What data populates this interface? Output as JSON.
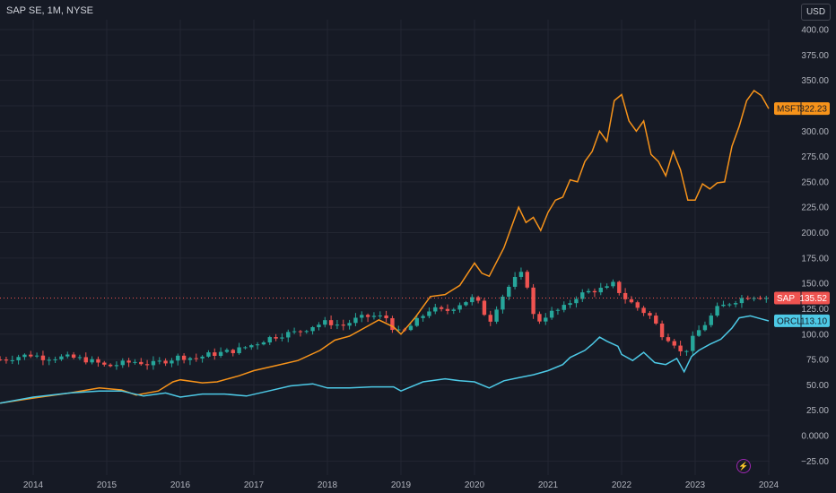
{
  "header": {
    "title": "SAP SE, 1M, NYSE",
    "currency": "USD"
  },
  "colors": {
    "background": "#161a25",
    "up": "#26a69a",
    "down": "#ef5350",
    "msft": "#f7931a",
    "orcl": "#4dc9e6",
    "grid": "#232632"
  },
  "icons": {
    "bolt": "lightning-icon"
  },
  "chart_data": {
    "type": "line",
    "title": "SAP SE, 1M, NYSE",
    "ylim": [
      -30,
      410
    ],
    "xlim": [
      2013.55,
      2024.6
    ],
    "y_ticks": [
      "400.00",
      "375.00",
      "350.00",
      "325.00",
      "300.00",
      "275.00",
      "250.00",
      "225.00",
      "200.00",
      "175.00",
      "150.00",
      "125.00",
      "100.00",
      "75.00",
      "50.00",
      "25.00",
      "0.0000",
      "−25.00"
    ],
    "y_tick_values": [
      400,
      375,
      350,
      325,
      300,
      275,
      250,
      225,
      200,
      175,
      150,
      125,
      100,
      75,
      50,
      25,
      0,
      -25
    ],
    "x_ticks": [
      "2014",
      "2015",
      "2016",
      "2017",
      "2018",
      "2019",
      "2020",
      "2021",
      "2022",
      "2023",
      "2024"
    ],
    "x_tick_values": [
      2014,
      2015,
      2016,
      2017,
      2018,
      2019,
      2020,
      2021,
      2022,
      2023,
      2024
    ],
    "grid": true,
    "series": [
      {
        "name": "MSFT",
        "last": "322.23",
        "color": "#f7931a",
        "points": [
          [
            2013.55,
            32
          ],
          [
            2014.0,
            37
          ],
          [
            2014.5,
            42
          ],
          [
            2014.9,
            47
          ],
          [
            2015.2,
            45
          ],
          [
            2015.4,
            40
          ],
          [
            2015.7,
            44
          ],
          [
            2015.9,
            53
          ],
          [
            2016.0,
            55
          ],
          [
            2016.3,
            52
          ],
          [
            2016.5,
            53
          ],
          [
            2016.8,
            59
          ],
          [
            2017.0,
            64
          ],
          [
            2017.3,
            69
          ],
          [
            2017.6,
            74
          ],
          [
            2017.9,
            84
          ],
          [
            2018.1,
            94
          ],
          [
            2018.3,
            98
          ],
          [
            2018.5,
            106
          ],
          [
            2018.7,
            114
          ],
          [
            2018.9,
            107
          ],
          [
            2019.0,
            100
          ],
          [
            2019.2,
            117
          ],
          [
            2019.4,
            137
          ],
          [
            2019.6,
            139
          ],
          [
            2019.8,
            148
          ],
          [
            2020.0,
            170
          ],
          [
            2020.1,
            160
          ],
          [
            2020.2,
            157
          ],
          [
            2020.4,
            185
          ],
          [
            2020.5,
            205
          ],
          [
            2020.6,
            225
          ],
          [
            2020.7,
            210
          ],
          [
            2020.8,
            215
          ],
          [
            2020.9,
            202
          ],
          [
            2021.0,
            220
          ],
          [
            2021.1,
            232
          ],
          [
            2021.2,
            235
          ],
          [
            2021.3,
            252
          ],
          [
            2021.4,
            250
          ],
          [
            2021.5,
            270
          ],
          [
            2021.6,
            280
          ],
          [
            2021.7,
            300
          ],
          [
            2021.8,
            290
          ],
          [
            2021.9,
            330
          ],
          [
            2022.0,
            336
          ],
          [
            2022.1,
            310
          ],
          [
            2022.2,
            300
          ],
          [
            2022.3,
            310
          ],
          [
            2022.4,
            277
          ],
          [
            2022.5,
            270
          ],
          [
            2022.6,
            256
          ],
          [
            2022.7,
            280
          ],
          [
            2022.8,
            262
          ],
          [
            2022.9,
            232
          ],
          [
            2023.0,
            232
          ],
          [
            2023.1,
            248
          ],
          [
            2023.2,
            243
          ],
          [
            2023.3,
            249
          ],
          [
            2023.4,
            250
          ],
          [
            2023.5,
            285
          ],
          [
            2023.6,
            305
          ],
          [
            2023.7,
            330
          ],
          [
            2023.8,
            340
          ],
          [
            2023.9,
            335
          ],
          [
            2024.0,
            322
          ]
        ]
      },
      {
        "name": "ORCL",
        "last": "113.10",
        "color": "#4dc9e6",
        "points": [
          [
            2013.55,
            32
          ],
          [
            2014.0,
            38
          ],
          [
            2014.5,
            42
          ],
          [
            2014.9,
            44
          ],
          [
            2015.2,
            44
          ],
          [
            2015.5,
            39
          ],
          [
            2015.8,
            42
          ],
          [
            2016.0,
            38
          ],
          [
            2016.3,
            41
          ],
          [
            2016.6,
            41
          ],
          [
            2016.9,
            39
          ],
          [
            2017.2,
            44
          ],
          [
            2017.5,
            49
          ],
          [
            2017.8,
            51
          ],
          [
            2018.0,
            47
          ],
          [
            2018.3,
            47
          ],
          [
            2018.6,
            48
          ],
          [
            2018.9,
            48
          ],
          [
            2019.0,
            44
          ],
          [
            2019.3,
            53
          ],
          [
            2019.6,
            56
          ],
          [
            2019.8,
            54
          ],
          [
            2020.0,
            53
          ],
          [
            2020.2,
            47
          ],
          [
            2020.4,
            54
          ],
          [
            2020.6,
            57
          ],
          [
            2020.8,
            60
          ],
          [
            2021.0,
            64
          ],
          [
            2021.2,
            70
          ],
          [
            2021.3,
            77
          ],
          [
            2021.5,
            84
          ],
          [
            2021.6,
            90
          ],
          [
            2021.7,
            97
          ],
          [
            2021.8,
            93
          ],
          [
            2021.95,
            88
          ],
          [
            2022.0,
            80
          ],
          [
            2022.15,
            74
          ],
          [
            2022.3,
            82
          ],
          [
            2022.45,
            72
          ],
          [
            2022.6,
            70
          ],
          [
            2022.75,
            76
          ],
          [
            2022.85,
            63
          ],
          [
            2022.95,
            78
          ],
          [
            2023.05,
            84
          ],
          [
            2023.2,
            90
          ],
          [
            2023.35,
            95
          ],
          [
            2023.5,
            106
          ],
          [
            2023.6,
            116
          ],
          [
            2023.75,
            118
          ],
          [
            2023.9,
            115
          ],
          [
            2024.0,
            113
          ]
        ]
      },
      {
        "name": "SAP",
        "last": "135.52",
        "type": "candlestick",
        "closes": [
          [
            2013.6,
            75
          ],
          [
            2013.8,
            78
          ],
          [
            2014.0,
            80
          ],
          [
            2014.1,
            77
          ],
          [
            2014.3,
            77
          ],
          [
            2014.5,
            77
          ],
          [
            2014.7,
            75
          ],
          [
            2014.9,
            71
          ],
          [
            2015.0,
            68
          ],
          [
            2015.2,
            71
          ],
          [
            2015.4,
            73
          ],
          [
            2015.6,
            70
          ],
          [
            2015.8,
            74
          ],
          [
            2016.0,
            78
          ],
          [
            2016.2,
            76
          ],
          [
            2016.4,
            80
          ],
          [
            2016.6,
            82
          ],
          [
            2016.8,
            85
          ],
          [
            2017.0,
            90
          ],
          [
            2017.2,
            96
          ],
          [
            2017.4,
            100
          ],
          [
            2017.6,
            102
          ],
          [
            2017.8,
            108
          ],
          [
            2018.0,
            112
          ],
          [
            2018.2,
            108
          ],
          [
            2018.4,
            115
          ],
          [
            2018.6,
            118
          ],
          [
            2018.8,
            116
          ],
          [
            2018.9,
            105
          ],
          [
            2019.0,
            100
          ],
          [
            2019.2,
            112
          ],
          [
            2019.4,
            125
          ],
          [
            2019.6,
            122
          ],
          [
            2019.8,
            130
          ],
          [
            2020.0,
            136
          ],
          [
            2020.1,
            125
          ],
          [
            2020.2,
            112
          ],
          [
            2020.3,
            127
          ],
          [
            2020.4,
            140
          ],
          [
            2020.5,
            150
          ],
          [
            2020.6,
            158
          ],
          [
            2020.7,
            160
          ],
          [
            2020.75,
            125
          ],
          [
            2020.85,
            112
          ],
          [
            2021.0,
            120
          ],
          [
            2021.2,
            125
          ],
          [
            2021.4,
            138
          ],
          [
            2021.6,
            143
          ],
          [
            2021.8,
            145
          ],
          [
            2021.9,
            150
          ],
          [
            2022.0,
            138
          ],
          [
            2022.2,
            127
          ],
          [
            2022.4,
            117
          ],
          [
            2022.55,
            100
          ],
          [
            2022.7,
            93
          ],
          [
            2022.8,
            82
          ],
          [
            2022.9,
            86
          ],
          [
            2023.0,
            100
          ],
          [
            2023.1,
            107
          ],
          [
            2023.3,
            125
          ],
          [
            2023.5,
            132
          ],
          [
            2023.7,
            137
          ],
          [
            2023.85,
            138
          ],
          [
            2024.0,
            135.52
          ]
        ]
      }
    ]
  }
}
